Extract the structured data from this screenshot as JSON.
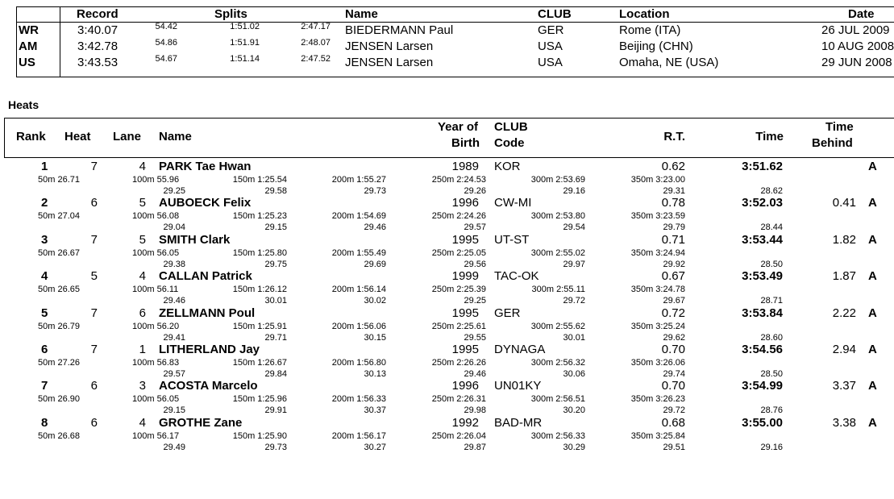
{
  "records": {
    "headers": {
      "record": "Record",
      "splits": "Splits",
      "name": "Name",
      "club": "CLUB",
      "location": "Location",
      "date": "Date"
    },
    "rows": [
      {
        "code": "WR",
        "time": "3:40.07",
        "s50": "54.42",
        "s100": "1:51.02",
        "s150": "2:47.17",
        "name": "BIEDERMANN Paul",
        "club": "GER",
        "location": "Rome (ITA)",
        "date": "26 JUL 2009"
      },
      {
        "code": "AM",
        "time": "3:42.78",
        "s50": "54.86",
        "s100": "1:51.91",
        "s150": "2:48.07",
        "name": "JENSEN Larsen",
        "club": "USA",
        "location": "Beijing (CHN)",
        "date": "10 AUG 2008"
      },
      {
        "code": "US",
        "time": "3:43.53",
        "s50": "54.67",
        "s100": "1:51.14",
        "s150": "2:47.52",
        "name": "JENSEN Larsen",
        "club": "USA",
        "location": "Omaha, NE (USA)",
        "date": "29 JUN 2008"
      }
    ]
  },
  "section_title": "Heats",
  "heats_headers": {
    "rank": "Rank",
    "heat": "Heat",
    "lane": "Lane",
    "name": "Name",
    "year_of": "Year of",
    "birth": "Birth",
    "club": "CLUB",
    "code": "Code",
    "rt": "R.T.",
    "time": "Time",
    "time_top": "Time",
    "behind": "Behind"
  },
  "swimmers": [
    {
      "rank": "1",
      "heat": "7",
      "lane": "4",
      "name": "PARK Tae Hwan",
      "yob": "1989",
      "club": "KOR",
      "rt": "0.62",
      "time": "3:51.62",
      "behind": "",
      "flag": "A",
      "s50": "50m 26.71",
      "s100": "100m 55.96",
      "s150": "150m 1:25.54",
      "s200": "200m 1:55.27",
      "s250": "250m 2:24.53",
      "s300": "300m 2:53.69",
      "s350": "350m 3:23.00",
      "d100": "29.25",
      "d150": "29.58",
      "d200": "29.73",
      "d250": "29.26",
      "d300": "29.16",
      "d350": "29.31",
      "d400": "28.62"
    },
    {
      "rank": "2",
      "heat": "6",
      "lane": "5",
      "name": "AUBOECK Felix",
      "yob": "1996",
      "club": "CW-MI",
      "rt": "0.78",
      "time": "3:52.03",
      "behind": "0.41",
      "flag": "A",
      "s50": "50m 27.04",
      "s100": "100m 56.08",
      "s150": "150m 1:25.23",
      "s200": "200m 1:54.69",
      "s250": "250m 2:24.26",
      "s300": "300m 2:53.80",
      "s350": "350m 3:23.59",
      "d100": "29.04",
      "d150": "29.15",
      "d200": "29.46",
      "d250": "29.57",
      "d300": "29.54",
      "d350": "29.79",
      "d400": "28.44"
    },
    {
      "rank": "3",
      "heat": "7",
      "lane": "5",
      "name": "SMITH Clark",
      "yob": "1995",
      "club": "UT-ST",
      "rt": "0.71",
      "time": "3:53.44",
      "behind": "1.82",
      "flag": "A",
      "s50": "50m 26.67",
      "s100": "100m 56.05",
      "s150": "150m 1:25.80",
      "s200": "200m 1:55.49",
      "s250": "250m 2:25.05",
      "s300": "300m 2:55.02",
      "s350": "350m 3:24.94",
      "d100": "29.38",
      "d150": "29.75",
      "d200": "29.69",
      "d250": "29.56",
      "d300": "29.97",
      "d350": "29.92",
      "d400": "28.50"
    },
    {
      "rank": "4",
      "heat": "5",
      "lane": "4",
      "name": "CALLAN Patrick",
      "yob": "1999",
      "club": "TAC-OK",
      "rt": "0.67",
      "time": "3:53.49",
      "behind": "1.87",
      "flag": "A",
      "s50": "50m 26.65",
      "s100": "100m 56.11",
      "s150": "150m 1:26.12",
      "s200": "200m 1:56.14",
      "s250": "250m 2:25.39",
      "s300": "300m 2:55.11",
      "s350": "350m 3:24.78",
      "d100": "29.46",
      "d150": "30.01",
      "d200": "30.02",
      "d250": "29.25",
      "d300": "29.72",
      "d350": "29.67",
      "d400": "28.71"
    },
    {
      "rank": "5",
      "heat": "7",
      "lane": "6",
      "name": "ZELLMANN Poul",
      "yob": "1995",
      "club": "GER",
      "rt": "0.72",
      "time": "3:53.84",
      "behind": "2.22",
      "flag": "A",
      "s50": "50m 26.79",
      "s100": "100m 56.20",
      "s150": "150m 1:25.91",
      "s200": "200m 1:56.06",
      "s250": "250m 2:25.61",
      "s300": "300m 2:55.62",
      "s350": "350m 3:25.24",
      "d100": "29.41",
      "d150": "29.71",
      "d200": "30.15",
      "d250": "29.55",
      "d300": "30.01",
      "d350": "29.62",
      "d400": "28.60"
    },
    {
      "rank": "6",
      "heat": "7",
      "lane": "1",
      "name": "LITHERLAND Jay",
      "yob": "1995",
      "club": "DYNAGA",
      "rt": "0.70",
      "time": "3:54.56",
      "behind": "2.94",
      "flag": "A",
      "s50": "50m 27.26",
      "s100": "100m 56.83",
      "s150": "150m 1:26.67",
      "s200": "200m 1:56.80",
      "s250": "250m 2:26.26",
      "s300": "300m 2:56.32",
      "s350": "350m 3:26.06",
      "d100": "29.57",
      "d150": "29.84",
      "d200": "30.13",
      "d250": "29.46",
      "d300": "30.06",
      "d350": "29.74",
      "d400": "28.50"
    },
    {
      "rank": "7",
      "heat": "6",
      "lane": "3",
      "name": "ACOSTA Marcelo",
      "yob": "1996",
      "club": "UN01KY",
      "rt": "0.70",
      "time": "3:54.99",
      "behind": "3.37",
      "flag": "A",
      "s50": "50m 26.90",
      "s100": "100m 56.05",
      "s150": "150m 1:25.96",
      "s200": "200m 1:56.33",
      "s250": "250m 2:26.31",
      "s300": "300m 2:56.51",
      "s350": "350m 3:26.23",
      "d100": "29.15",
      "d150": "29.91",
      "d200": "30.37",
      "d250": "29.98",
      "d300": "30.20",
      "d350": "29.72",
      "d400": "28.76"
    },
    {
      "rank": "8",
      "heat": "6",
      "lane": "4",
      "name": "GROTHE Zane",
      "yob": "1992",
      "club": "BAD-MR",
      "rt": "0.68",
      "time": "3:55.00",
      "behind": "3.38",
      "flag": "A",
      "s50": "50m 26.68",
      "s100": "100m 56.17",
      "s150": "150m 1:25.90",
      "s200": "200m 1:56.17",
      "s250": "250m 2:26.04",
      "s300": "300m 2:56.33",
      "s350": "350m 3:25.84",
      "d100": "29.49",
      "d150": "29.73",
      "d200": "30.27",
      "d250": "29.87",
      "d300": "30.29",
      "d350": "29.51",
      "d400": "29.16"
    }
  ]
}
